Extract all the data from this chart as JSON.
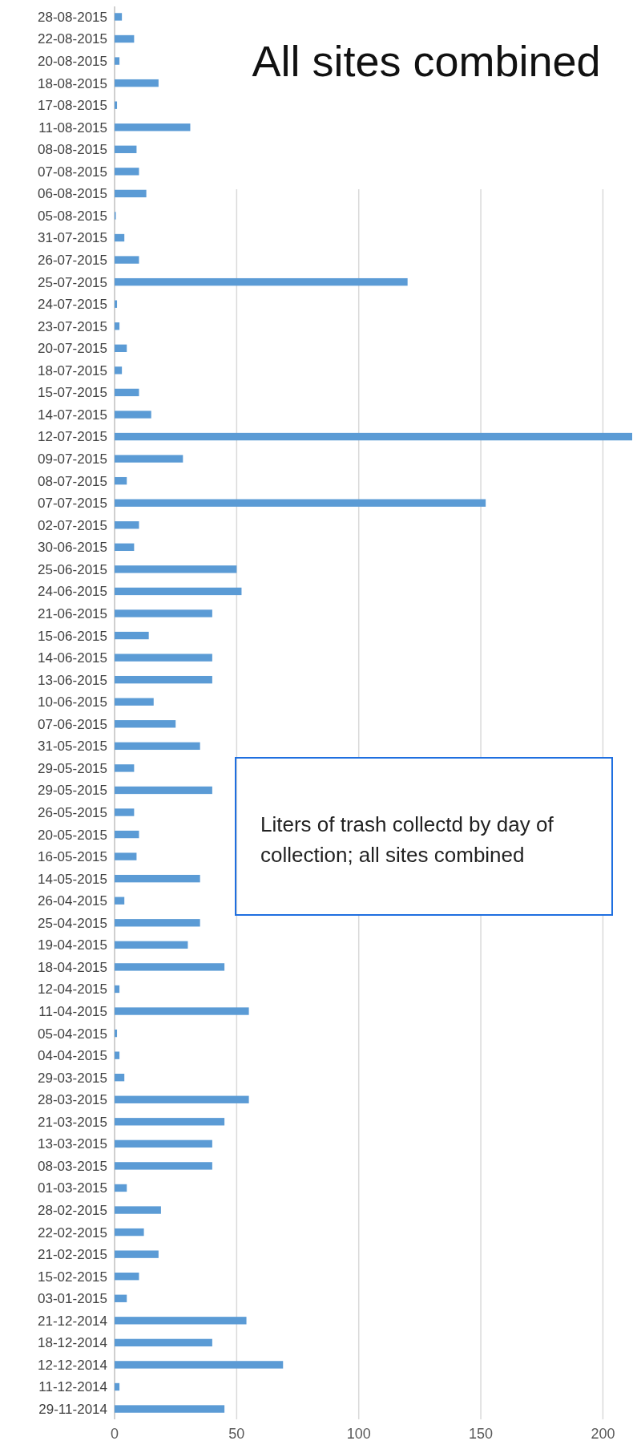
{
  "chart_data": {
    "type": "bar",
    "orientation": "horizontal",
    "title": "All sites combined",
    "annotations": [
      "Liters of trash collectd by day of collection; all sites combined"
    ],
    "categories": [
      "28-08-2015",
      "22-08-2015",
      "20-08-2015",
      "18-08-2015",
      "17-08-2015",
      "11-08-2015",
      "08-08-2015",
      "07-08-2015",
      "06-08-2015",
      "05-08-2015",
      "31-07-2015",
      "26-07-2015",
      "25-07-2015",
      "24-07-2015",
      "23-07-2015",
      "20-07-2015",
      "18-07-2015",
      "15-07-2015",
      "14-07-2015",
      "12-07-2015",
      "09-07-2015",
      "08-07-2015",
      "07-07-2015",
      "02-07-2015",
      "30-06-2015",
      "25-06-2015",
      "24-06-2015",
      "21-06-2015",
      "15-06-2015",
      "14-06-2015",
      "13-06-2015",
      "10-06-2015",
      "07-06-2015",
      "31-05-2015",
      "29-05-2015",
      "29-05-2015",
      "26-05-2015",
      "20-05-2015",
      "16-05-2015",
      "14-05-2015",
      "26-04-2015",
      "25-04-2015",
      "19-04-2015",
      "18-04-2015",
      "12-04-2015",
      "11-04-2015",
      "05-04-2015",
      "04-04-2015",
      "29-03-2015",
      "28-03-2015",
      "21-03-2015",
      "13-03-2015",
      "08-03-2015",
      "01-03-2015",
      "28-02-2015",
      "22-02-2015",
      "21-02-2015",
      "15-02-2015",
      "03-01-2015",
      "21-12-2014",
      "18-12-2014",
      "12-12-2014",
      "11-12-2014",
      "29-11-2014"
    ],
    "values": [
      3,
      8,
      2,
      18,
      1,
      31,
      9,
      10,
      13,
      0.5,
      4,
      10,
      120,
      1,
      2,
      5,
      3,
      10,
      15,
      212,
      28,
      5,
      152,
      10,
      8,
      50,
      52,
      40,
      14,
      40,
      40,
      16,
      25,
      35,
      8,
      40,
      8,
      10,
      9,
      35,
      4,
      35,
      30,
      45,
      2,
      55,
      1,
      2,
      4,
      55,
      45,
      40,
      40,
      5,
      19,
      12,
      18,
      10,
      5,
      54,
      40,
      69,
      2,
      45
    ],
    "color": "#5b9bd5",
    "xlim": [
      0,
      212
    ],
    "xticks": [
      0,
      50,
      100,
      150,
      200
    ],
    "grid": "x"
  }
}
